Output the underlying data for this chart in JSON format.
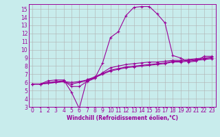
{
  "xlabel": "Windchill (Refroidissement éolien,°C)",
  "ylabel": "",
  "background_color": "#c8ecec",
  "line_color": "#990099",
  "grid_color": "#b0b0b0",
  "xlim": [
    -0.5,
    23.5
  ],
  "ylim": [
    3,
    15.6
  ],
  "xticks": [
    0,
    1,
    2,
    3,
    4,
    5,
    6,
    7,
    8,
    9,
    10,
    11,
    12,
    13,
    14,
    15,
    16,
    17,
    18,
    19,
    20,
    21,
    22,
    23
  ],
  "yticks": [
    3,
    4,
    5,
    6,
    7,
    8,
    9,
    10,
    11,
    12,
    13,
    14,
    15
  ],
  "lines": [
    [
      5.8,
      5.8,
      6.2,
      6.3,
      6.3,
      4.8,
      2.8,
      6.4,
      6.5,
      8.4,
      11.5,
      12.2,
      14.2,
      15.2,
      15.3,
      15.3,
      14.4,
      13.3,
      9.3,
      9.0,
      8.5,
      8.6,
      9.2,
      9.2
    ],
    [
      5.8,
      5.8,
      6.0,
      6.1,
      6.2,
      5.5,
      5.5,
      6.1,
      6.5,
      7.2,
      7.8,
      8.0,
      8.2,
      8.3,
      8.4,
      8.5,
      8.5,
      8.6,
      8.7,
      8.7,
      8.8,
      8.9,
      9.0,
      9.1
    ],
    [
      5.8,
      5.8,
      5.9,
      6.0,
      6.1,
      5.8,
      6.0,
      6.2,
      6.6,
      7.0,
      7.4,
      7.6,
      7.8,
      7.9,
      8.0,
      8.1,
      8.2,
      8.3,
      8.5,
      8.5,
      8.6,
      8.7,
      8.8,
      8.9
    ],
    [
      5.8,
      5.8,
      5.9,
      6.0,
      6.1,
      6.0,
      6.1,
      6.3,
      6.7,
      7.1,
      7.5,
      7.7,
      7.9,
      8.0,
      8.1,
      8.2,
      8.3,
      8.4,
      8.6,
      8.6,
      8.7,
      8.8,
      8.9,
      9.0
    ]
  ],
  "tick_fontsize": 5.5,
  "xlabel_fontsize": 5.5,
  "linewidth": 0.8,
  "markersize": 3.0
}
